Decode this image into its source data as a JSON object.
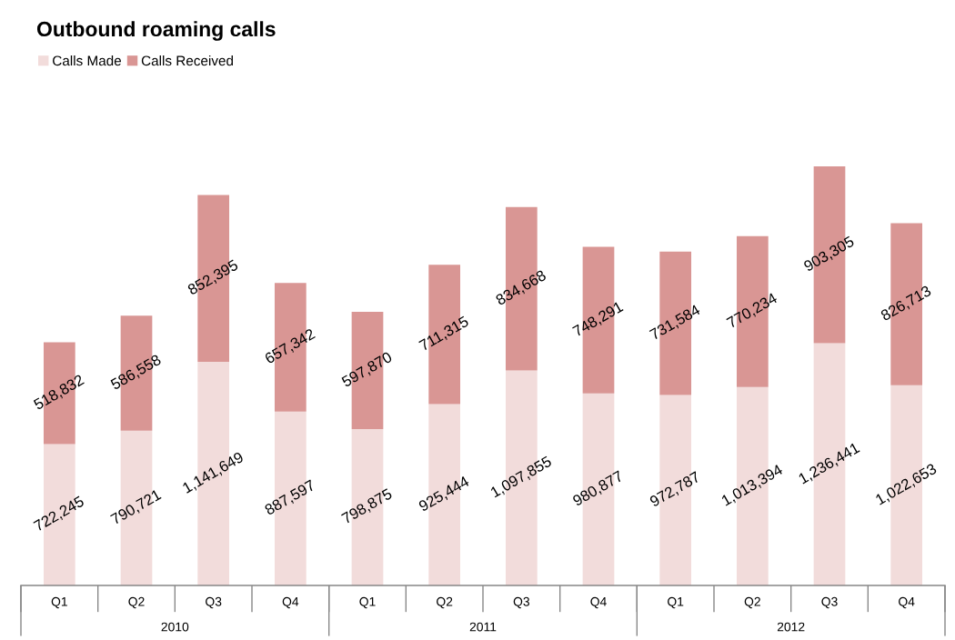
{
  "chart_data": {
    "type": "bar",
    "title": "Outbound roaming calls",
    "categories": [
      "Q1",
      "Q2",
      "Q3",
      "Q4",
      "Q1",
      "Q2",
      "Q3",
      "Q4",
      "Q1",
      "Q2",
      "Q3",
      "Q4"
    ],
    "annotations": [
      "2010",
      "2011",
      "2012"
    ],
    "series": [
      {
        "name": "Calls Made",
        "color": "#f2dcdb",
        "values": [
          722245,
          790721,
          1141649,
          887597,
          798875,
          925444,
          1097855,
          980877,
          972787,
          1013394,
          1236441,
          1022653
        ],
        "value_labels": [
          "722,245",
          "790,721",
          "1,141,649",
          "887,597",
          "798,875",
          "925,444",
          "1,097,855",
          "980,877",
          "972,787",
          "1,013,394",
          "1,236,441",
          "1,022,653"
        ]
      },
      {
        "name": "Calls Received",
        "color": "#d99694",
        "values": [
          518832,
          586558,
          852395,
          657342,
          597870,
          711315,
          834668,
          748291,
          731584,
          770234,
          903305,
          826713
        ],
        "value_labels": [
          "518,832",
          "586,558",
          "852,395",
          "657,342",
          "597,870",
          "711,315",
          "834,668",
          "748,291",
          "731,584",
          "770,234",
          "903,305",
          "826,713"
        ]
      }
    ],
    "stacked": true,
    "legend": "top left",
    "tick_labels": "x"
  }
}
